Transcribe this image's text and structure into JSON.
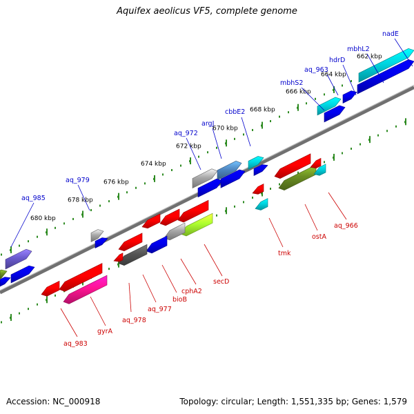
{
  "title": "Aquifex aeolicus VF5, complete genome",
  "footer": {
    "accession": "Accession: NC_000918",
    "stats": "Topology: circular; Length: 1,551,335 bp; Genes: 1,579"
  },
  "colors": {
    "backbone": "#808080",
    "tick": "#2e8b22",
    "forward_label": "#0000cc",
    "reverse_label": "#cc0000",
    "red": "#ff0000",
    "blue": "#0000ee",
    "cyan": "#00d4e0",
    "gray": "#a8a8a8",
    "darkgray": "#555555",
    "steelblue": "#4f86c0",
    "purple": "#6a5acd",
    "olive": "#6b8e23",
    "lime": "#adff2f",
    "magenta": "#ff1493"
  },
  "scale_labels": [
    "662 kbp",
    "664 kbp",
    "666 kbp",
    "668 kbp",
    "670 kbp",
    "672 kbp",
    "674 kbp",
    "676 kbp",
    "678 kbp",
    "680 kbp"
  ],
  "forward_genes": [
    {
      "name": "nadE",
      "color": "blue"
    },
    {
      "name": "mbhL2",
      "color": "cyan"
    },
    {
      "name": "hdrD",
      "color": "blue"
    },
    {
      "name": "aq_963",
      "color": "cyan"
    },
    {
      "name": "mbhS2",
      "color": "blue"
    },
    {
      "name": "cbbE2",
      "color": "cyan"
    },
    {
      "name": "argJ",
      "color": "steelblue"
    },
    {
      "name": "aq_972",
      "color": "gray"
    },
    {
      "name": "aq_979",
      "color": "gray"
    },
    {
      "name": "aq_985",
      "color": "purple"
    }
  ],
  "reverse_genes": [
    {
      "name": "aq_966",
      "color": "cyan"
    },
    {
      "name": "ostA",
      "color": "olive"
    },
    {
      "name": "tmk",
      "color": "cyan"
    },
    {
      "name": "secD",
      "color": "lime"
    },
    {
      "name": "cphA2",
      "color": "gray"
    },
    {
      "name": "bioB",
      "color": "blue"
    },
    {
      "name": "aq_977",
      "color": "blue"
    },
    {
      "name": "aq_978",
      "color": "darkgray"
    },
    {
      "name": "gyrA",
      "color": "magenta"
    },
    {
      "name": "aq_983",
      "color": "red"
    }
  ]
}
